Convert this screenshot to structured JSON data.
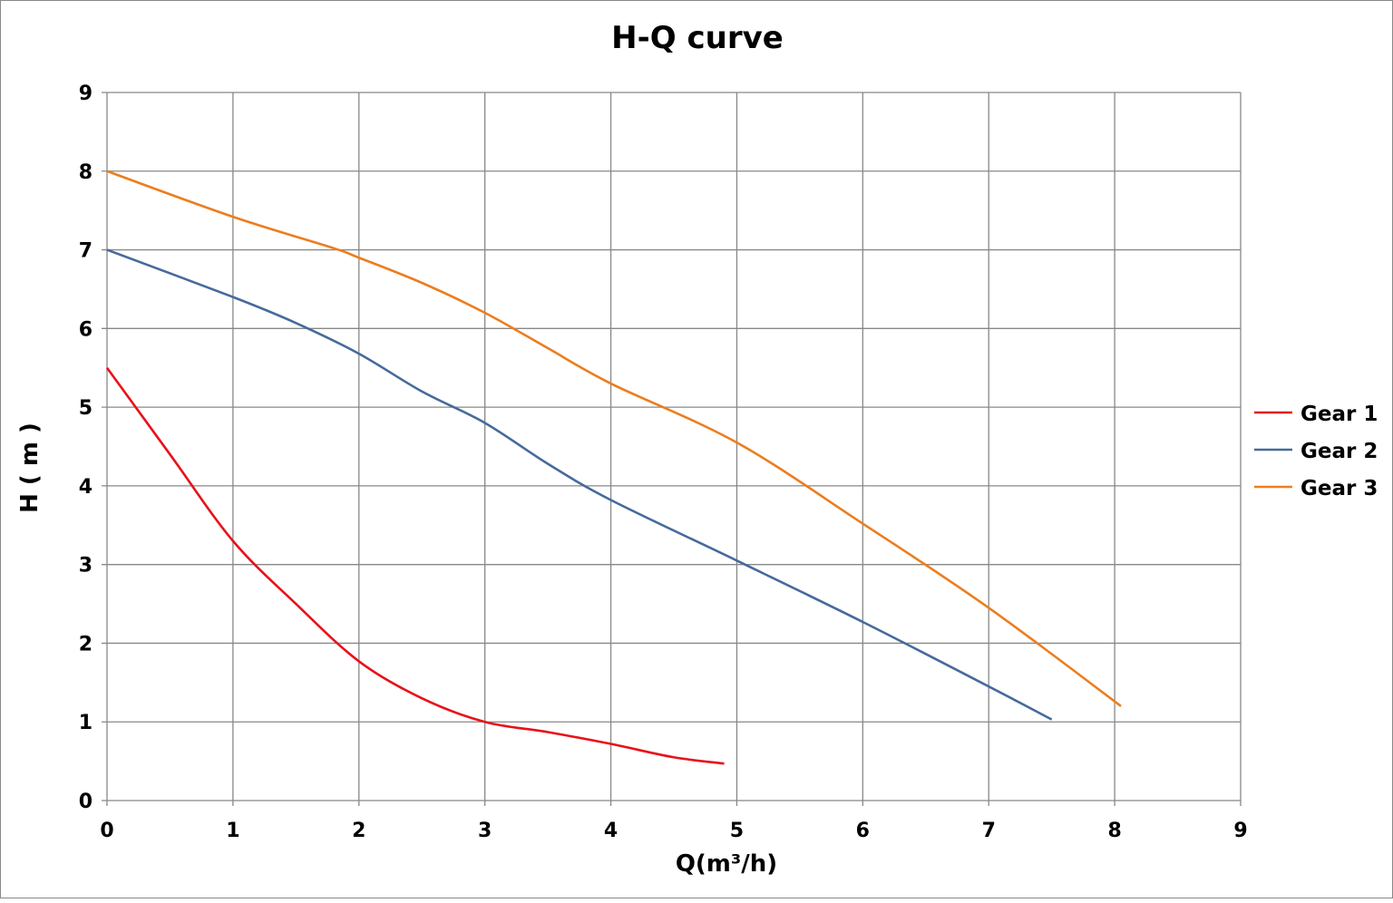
{
  "chart_data": {
    "type": "line",
    "title": "H-Q  curve",
    "xlabel": "Q(m³/h)",
    "ylabel": "H ( m )",
    "xlim": [
      0,
      9
    ],
    "ylim": [
      0,
      9
    ],
    "xticks": [
      0,
      1,
      2,
      3,
      4,
      5,
      6,
      7,
      8,
      9
    ],
    "yticks": [
      0,
      1,
      2,
      3,
      4,
      5,
      6,
      7,
      8,
      9
    ],
    "grid": true,
    "legend_position": "right",
    "series": [
      {
        "name": "Gear 1",
        "color": "#e8111a",
        "x": [
          0,
          0.5,
          1,
          1.5,
          2,
          2.5,
          3,
          3.5,
          4,
          4.5,
          4.9
        ],
        "y": [
          5.5,
          4.4,
          3.3,
          2.5,
          1.77,
          1.3,
          1.0,
          0.87,
          0.72,
          0.55,
          0.47
        ]
      },
      {
        "name": "Gear 2",
        "color": "#466a9c",
        "x": [
          0,
          1,
          1.5,
          2,
          2.5,
          3,
          3.5,
          4,
          5,
          6,
          7,
          7.5
        ],
        "y": [
          7,
          6.4,
          6.07,
          5.68,
          5.2,
          4.8,
          4.28,
          3.82,
          3.05,
          2.27,
          1.45,
          1.03
        ]
      },
      {
        "name": "Gear 3",
        "color": "#ec7d1e",
        "x": [
          0,
          1,
          1.8,
          2,
          2.5,
          3,
          3.5,
          4,
          5,
          6,
          7,
          8.05
        ],
        "y": [
          8,
          7.42,
          7.02,
          6.9,
          6.58,
          6.2,
          5.75,
          5.3,
          4.55,
          3.52,
          2.45,
          1.2
        ]
      }
    ]
  }
}
